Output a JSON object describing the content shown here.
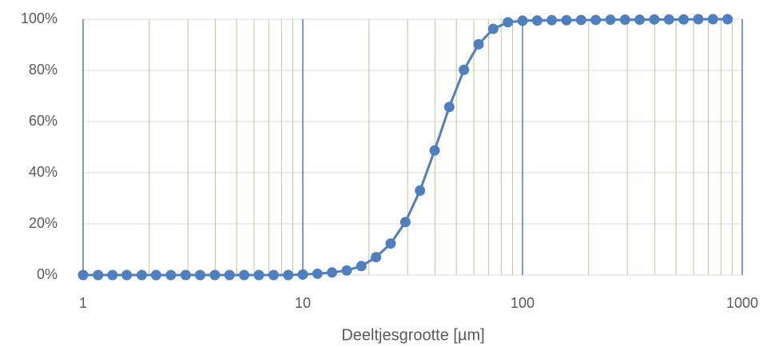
{
  "chart_data": {
    "type": "line",
    "x_label": "Deeltjesgrootte [µm]",
    "x": [
      1,
      1.17,
      1.36,
      1.58,
      1.85,
      2.15,
      2.51,
      2.93,
      3.41,
      3.98,
      4.64,
      5.41,
      6.31,
      7.36,
      8.58,
      10,
      11.66,
      13.59,
      15.85,
      18.48,
      21.54,
      25.12,
      29.29,
      34.15,
      39.81,
      46.42,
      54.12,
      63.1,
      73.56,
      85.77,
      100,
      116.6,
      135.9,
      158.5,
      184.8,
      215.4,
      251.2,
      292.9,
      341.5,
      398.1,
      464.2,
      541.2,
      631,
      735.6,
      857.7
    ],
    "series": [
      {
        "color": "#4f7fbe",
        "values": [
          0,
          0,
          0,
          0,
          0,
          0,
          0,
          0,
          0,
          0,
          0,
          0,
          0,
          0,
          0,
          0.2,
          0.5,
          1.0,
          1.8,
          3.5,
          7.0,
          12.3,
          20.7,
          33.0,
          48.7,
          65.7,
          80.2,
          90.2,
          96.2,
          98.8,
          99.4,
          99.5,
          99.6,
          99.6,
          99.7,
          99.7,
          99.8,
          99.8,
          99.8,
          99.9,
          99.9,
          99.9,
          100,
          100,
          100
        ]
      }
    ],
    "xscale": "log",
    "xlim": [
      1,
      1000
    ],
    "xticks": [
      1,
      10,
      100,
      1000
    ],
    "x_minor_gridlines": [
      2,
      3,
      4,
      5,
      6,
      7,
      8,
      9,
      20,
      30,
      40,
      50,
      60,
      70,
      80,
      90,
      200,
      300,
      400,
      500,
      600,
      700,
      800,
      900
    ],
    "ylim": [
      0,
      100
    ],
    "yticks": [
      {
        "value": 0,
        "label": "0%"
      },
      {
        "value": 20,
        "label": "20%"
      },
      {
        "value": 40,
        "label": "40%"
      },
      {
        "value": 60,
        "label": "60%"
      },
      {
        "value": 80,
        "label": "80%"
      },
      {
        "value": 100,
        "label": "100%"
      }
    ],
    "grid": true,
    "major_grid_color": "#4f7fbe",
    "minor_grid_color": "#b5cc8e",
    "y_grid_color": "#d9d9d9"
  }
}
